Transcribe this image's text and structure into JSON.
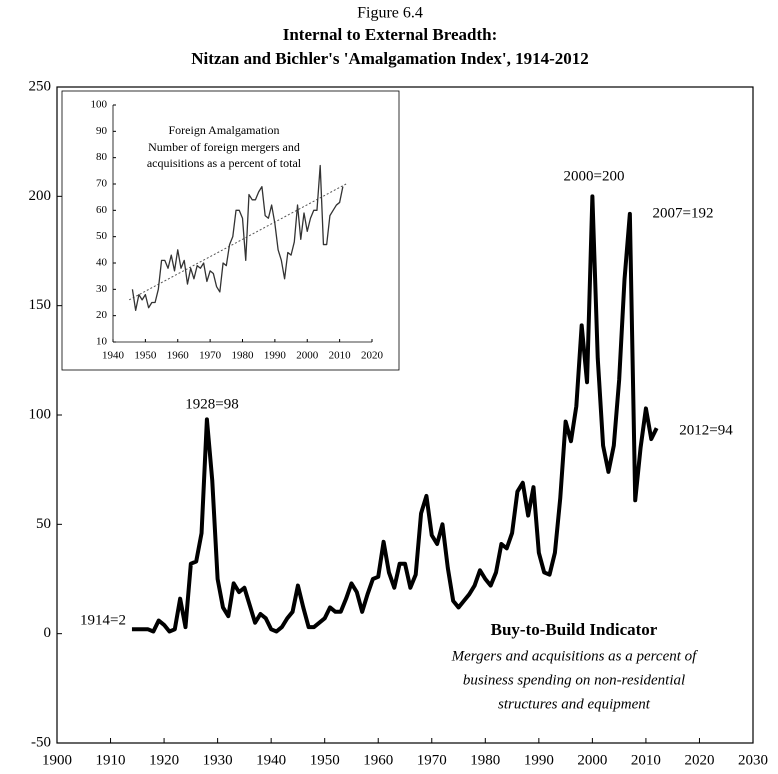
{
  "chart_data": [
    {
      "type": "line",
      "figure_label": "Figure 6.4",
      "title": "Internal to External Breadth:",
      "subtitle": "Nitzan and Bichler's 'Amalgamation Index', 1914-2012",
      "x": [
        1914,
        1915,
        1916,
        1917,
        1918,
        1919,
        1920,
        1921,
        1922,
        1923,
        1924,
        1925,
        1926,
        1927,
        1928,
        1929,
        1930,
        1931,
        1932,
        1933,
        1934,
        1935,
        1936,
        1937,
        1938,
        1939,
        1940,
        1941,
        1942,
        1943,
        1944,
        1945,
        1946,
        1947,
        1948,
        1949,
        1950,
        1951,
        1952,
        1953,
        1954,
        1955,
        1956,
        1957,
        1958,
        1959,
        1960,
        1961,
        1962,
        1963,
        1964,
        1965,
        1966,
        1967,
        1968,
        1969,
        1970,
        1971,
        1972,
        1973,
        1974,
        1975,
        1976,
        1977,
        1978,
        1979,
        1980,
        1981,
        1982,
        1983,
        1984,
        1985,
        1986,
        1987,
        1988,
        1989,
        1990,
        1991,
        1992,
        1993,
        1994,
        1995,
        1996,
        1997,
        1998,
        1999,
        2000,
        2001,
        2002,
        2003,
        2004,
        2005,
        2006,
        2007,
        2008,
        2009,
        2010,
        2011,
        2012
      ],
      "series": [
        {
          "name": "Buy-to-Build Indicator",
          "color": "#000000",
          "values": [
            2,
            2,
            2,
            2,
            1,
            6,
            4,
            1,
            2,
            16,
            3,
            32,
            33,
            46,
            98,
            70,
            25,
            12,
            8,
            23,
            19,
            21,
            13,
            5,
            9,
            7,
            2,
            1,
            3,
            7,
            10,
            22,
            12,
            3,
            3,
            5,
            7,
            12,
            10,
            10,
            16,
            23,
            19,
            10,
            18,
            25,
            26,
            42,
            28,
            21,
            32,
            32,
            21,
            27,
            55,
            63,
            45,
            41,
            50,
            30,
            15,
            12,
            15,
            18,
            22,
            29,
            25,
            22,
            28,
            41,
            39,
            46,
            65,
            69,
            54,
            67,
            37,
            28,
            27,
            37,
            62,
            97,
            88,
            104,
            141,
            115,
            200,
            126,
            86,
            74,
            86,
            116,
            162,
            192,
            61,
            85,
            103,
            89,
            94
          ]
        }
      ],
      "description_lines": [
        "Mergers and acquisitions as a percent of",
        "business spending on non-residential",
        "structures and equipment"
      ],
      "annotations": [
        "1914=2",
        "1928=98",
        "2000=200",
        "2007=192",
        "2012=94"
      ],
      "xlim": [
        1900,
        2030
      ],
      "xticks": [
        1900,
        1910,
        1920,
        1930,
        1940,
        1950,
        1960,
        1970,
        1980,
        1990,
        2000,
        2010,
        2020,
        2030
      ],
      "ylim": [
        -50,
        250
      ],
      "yticks": [
        -50,
        0,
        50,
        100,
        150,
        200,
        250
      ]
    },
    {
      "type": "line",
      "title": "Foreign Amalgamation",
      "subtitle_lines": [
        "Number of foreign mergers and",
        "acquisitions as a percent of total"
      ],
      "x": [
        1946,
        1947,
        1948,
        1949,
        1950,
        1951,
        1952,
        1953,
        1954,
        1955,
        1956,
        1957,
        1958,
        1959,
        1960,
        1961,
        1962,
        1963,
        1964,
        1965,
        1966,
        1967,
        1968,
        1969,
        1970,
        1971,
        1972,
        1973,
        1974,
        1975,
        1976,
        1977,
        1978,
        1979,
        1980,
        1981,
        1982,
        1983,
        1984,
        1985,
        1986,
        1987,
        1988,
        1989,
        1990,
        1991,
        1992,
        1993,
        1994,
        1995,
        1996,
        1997,
        1998,
        1999,
        2000,
        2001,
        2002,
        2003,
        2004,
        2005,
        2006,
        2007,
        2008,
        2009,
        2010,
        2011
      ],
      "series": [
        {
          "name": "Foreign Amalgamation",
          "color": "#333333",
          "values": [
            30,
            22,
            28,
            26,
            28,
            23,
            25,
            25,
            30,
            41,
            41,
            38,
            43,
            37,
            45,
            38,
            41,
            32,
            38,
            34,
            39,
            38,
            40,
            33,
            37,
            36,
            31,
            29,
            40,
            39,
            47,
            50,
            60,
            60,
            57,
            41,
            66,
            64,
            64,
            67,
            69,
            58,
            57,
            62,
            55,
            45,
            41,
            34,
            44,
            43,
            48,
            62,
            49,
            59,
            52,
            57,
            60,
            60,
            77,
            47,
            47,
            58,
            60,
            62,
            63,
            69
          ]
        }
      ],
      "trend": {
        "x": [
          1945,
          2012
        ],
        "values": [
          26,
          70
        ],
        "color": "#555555"
      },
      "xlim": [
        1940,
        2020
      ],
      "xticks": [
        1940,
        1950,
        1960,
        1970,
        1980,
        1990,
        2000,
        2010,
        2020
      ],
      "ylim": [
        10,
        100
      ],
      "yticks": [
        10,
        20,
        30,
        40,
        50,
        60,
        70,
        80,
        90,
        100
      ]
    }
  ]
}
